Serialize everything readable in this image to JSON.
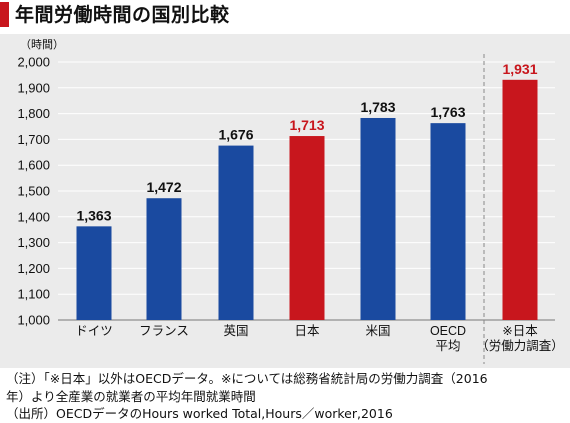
{
  "title": "年間労働時間の国別比較",
  "chart_data": {
    "type": "bar",
    "unit_label": "（時間）",
    "categories": [
      [
        "ドイツ"
      ],
      [
        "フランス"
      ],
      [
        "英国"
      ],
      [
        "日本"
      ],
      [
        "米国"
      ],
      [
        "OECD",
        "平均"
      ],
      [
        "※日本",
        "（労働力調査）"
      ]
    ],
    "values": [
      1363,
      1472,
      1676,
      1713,
      1783,
      1763,
      1931
    ],
    "value_labels": [
      "1,363",
      "1,472",
      "1,676",
      "1,713",
      "1,783",
      "1,763",
      "1,931"
    ],
    "highlight": [
      false,
      false,
      false,
      true,
      false,
      false,
      true
    ],
    "yticks": [
      1000,
      1100,
      1200,
      1300,
      1400,
      1500,
      1600,
      1700,
      1800,
      1900,
      2000
    ],
    "ytick_labels": [
      "1,000",
      "1,100",
      "1,200",
      "1,300",
      "1,400",
      "1,500",
      "1,600",
      "1,700",
      "1,800",
      "1,900",
      "2,000"
    ],
    "ylim": [
      1000,
      2000
    ],
    "grid": true,
    "separator_before_index": 6,
    "colors": {
      "bar": "#1a4aa0",
      "highlight": "#c8161d",
      "label": "#111111",
      "highlight_label": "#c8161d"
    }
  },
  "notes": [
    "（注）「※日本」以外はOECDデータ。※については総務省統計局の労働力調査（2016",
    "年）より全産業の就業者の平均年間就業時間",
    "（出所）OECDデータのHours worked Total,Hours／worker,2016"
  ]
}
